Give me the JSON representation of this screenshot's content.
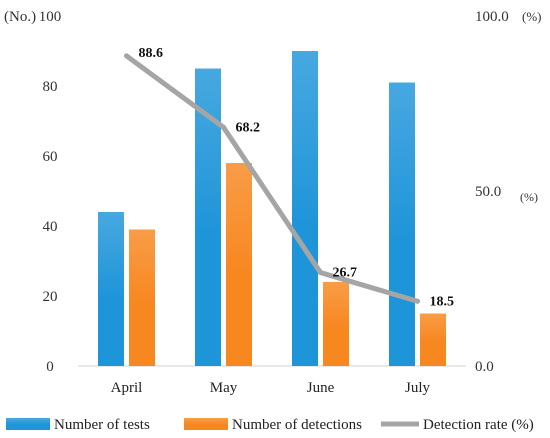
{
  "chart_data": {
    "type": "bar",
    "categories": [
      "April",
      "May",
      "June",
      "July"
    ],
    "series": [
      {
        "name": "Number of tests",
        "type": "bar",
        "axis": "left",
        "values": [
          44,
          85,
          90,
          81
        ],
        "color": "#1f95d9"
      },
      {
        "name": "Number of detections",
        "type": "bar",
        "axis": "left",
        "values": [
          39,
          58,
          24,
          15
        ],
        "color": "#f7871f"
      },
      {
        "name": "Detection rate (%)",
        "type": "line",
        "axis": "right",
        "values": [
          88.6,
          68.2,
          26.7,
          18.5
        ],
        "data_labels": [
          "88.6",
          "68.2",
          "26.7",
          "18.5"
        ],
        "color": "#a5a5a5"
      }
    ],
    "y_left": {
      "unit": "(No.)",
      "ylim": [
        0,
        100
      ],
      "ticks": [
        "0",
        "20",
        "40",
        "60",
        "80",
        "100"
      ]
    },
    "y_right": {
      "unit_top": "(%)",
      "unit_mid": "(%)",
      "ylim": [
        0,
        100
      ],
      "ticks": [
        "0.0",
        "50.0",
        "100.0"
      ]
    },
    "grid": false,
    "legend_position": "bottom"
  }
}
